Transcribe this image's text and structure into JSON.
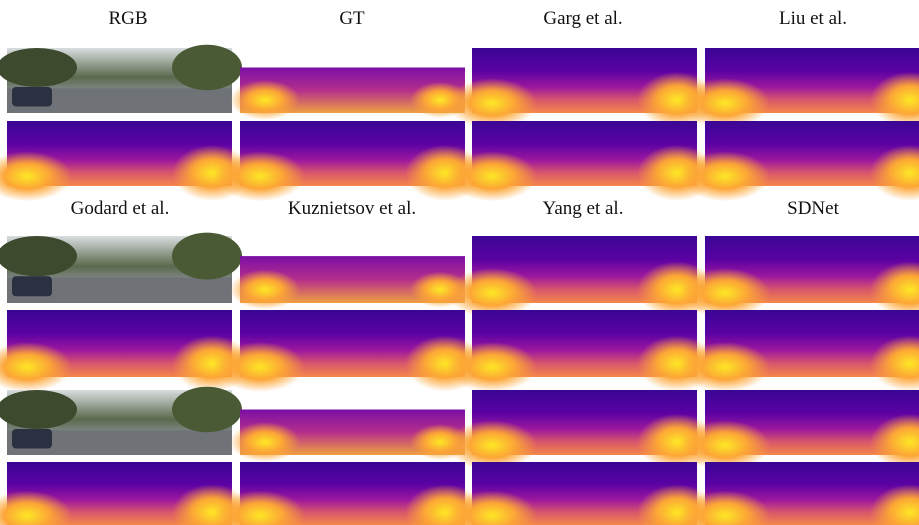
{
  "header_rows": [
    [
      "RGB",
      "GT",
      "Garg et al.",
      "Liu et al."
    ],
    [
      "Godard et al.",
      "Kuznietsov et al.",
      "Yang et al.",
      "SDNet"
    ]
  ]
}
